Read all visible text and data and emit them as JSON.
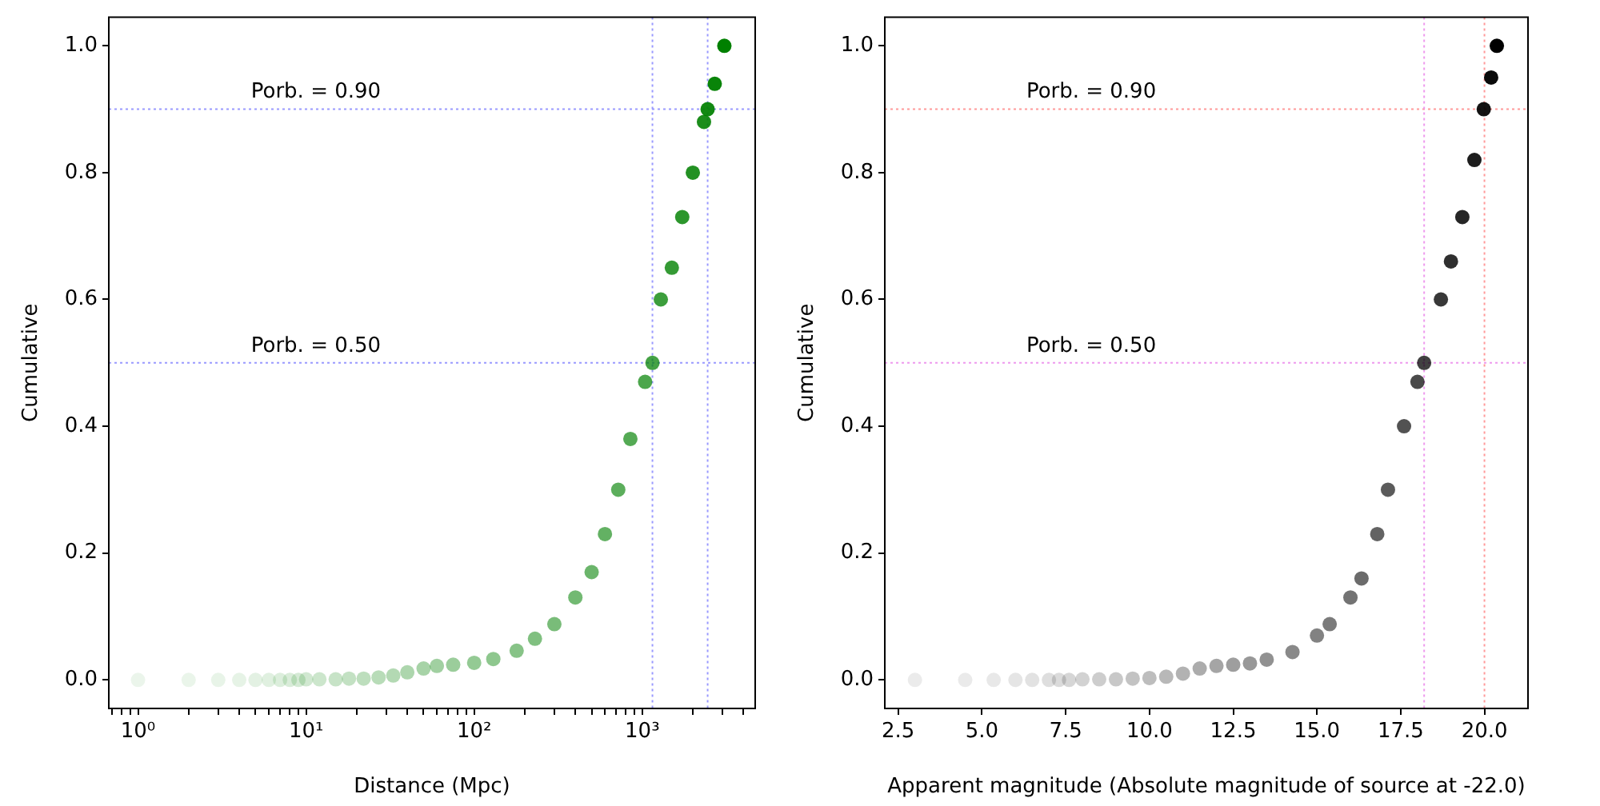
{
  "chart_data": [
    {
      "type": "scatter",
      "xlabel": "Distance (Mpc)",
      "ylabel": "Cumulative",
      "log": "x",
      "marker": "circle",
      "x": [
        1,
        2,
        3,
        4,
        5,
        6,
        7,
        8,
        9,
        10,
        12,
        15,
        18,
        22,
        27,
        33,
        40,
        50,
        60,
        75,
        100,
        130,
        179,
        230,
        300,
        400,
        500,
        600,
        720,
        850,
        1040,
        1150,
        1290,
        1500,
        1730,
        2000,
        2330,
        2450,
        2700,
        3080
      ],
      "series": [
        {
          "color": "#008000",
          "values": [
            0,
            0,
            0,
            0,
            0,
            0,
            0,
            0,
            0,
            0.001,
            0.001,
            0.001,
            0.002,
            0.002,
            0.004,
            0.007,
            0.012,
            0.018,
            0.022,
            0.024,
            0.027,
            0.033,
            0.046,
            0.065,
            0.088,
            0.13,
            0.17,
            0.23,
            0.3,
            0.38,
            0.47,
            0.5,
            0.6,
            0.65,
            0.73,
            0.8,
            0.88,
            0.9,
            0.94,
            1.0
          ]
        }
      ],
      "xlim": [
        0.67,
        4700
      ],
      "xticks": [
        {
          "value": 1,
          "label": "10⁰"
        },
        {
          "value": 10,
          "label": "10¹"
        },
        {
          "value": 100,
          "label": "10²"
        },
        {
          "value": 1000,
          "label": "10³"
        },
        {
          "value": 0.7,
          "label": null
        },
        {
          "value": 0.8,
          "label": null
        },
        {
          "value": 0.9,
          "label": null
        },
        {
          "value": 2,
          "label": null
        },
        {
          "value": 3,
          "label": null
        },
        {
          "value": 4,
          "label": null
        },
        {
          "value": 5,
          "label": null
        },
        {
          "value": 6,
          "label": null
        },
        {
          "value": 7,
          "label": null
        },
        {
          "value": 8,
          "label": null
        },
        {
          "value": 9,
          "label": null
        },
        {
          "value": 20,
          "label": null
        },
        {
          "value": 30,
          "label": null
        },
        {
          "value": 40,
          "label": null
        },
        {
          "value": 50,
          "label": null
        },
        {
          "value": 60,
          "label": null
        },
        {
          "value": 70,
          "label": null
        },
        {
          "value": 80,
          "label": null
        },
        {
          "value": 90,
          "label": null
        },
        {
          "value": 200,
          "label": null
        },
        {
          "value": 300,
          "label": null
        },
        {
          "value": 400,
          "label": null
        },
        {
          "value": 500,
          "label": null
        },
        {
          "value": 600,
          "label": null
        },
        {
          "value": 700,
          "label": null
        },
        {
          "value": 800,
          "label": null
        },
        {
          "value": 900,
          "label": null
        },
        {
          "value": 2000,
          "label": null
        },
        {
          "value": 3000,
          "label": null
        },
        {
          "value": 4000,
          "label": null
        }
      ],
      "ylim": [
        -0.045,
        1.045
      ],
      "yticks": [
        {
          "value": 0,
          "label": "0.0"
        },
        {
          "value": 0.2,
          "label": "0.2"
        },
        {
          "value": 0.4,
          "label": "0.4"
        },
        {
          "value": 0.6,
          "label": "0.6"
        },
        {
          "value": 0.8,
          "label": "0.8"
        },
        {
          "value": 1,
          "label": "1.0"
        }
      ],
      "ref_lines": [
        {
          "axis": "y",
          "value": 0.9,
          "label": "Porb. = 0.90",
          "color": "#9999ff",
          "line_style": "dotted"
        },
        {
          "axis": "y",
          "value": 0.5,
          "label": "Porb. = 0.50",
          "color": "#9999ff",
          "line_style": "dotted"
        },
        {
          "axis": "x",
          "value": 1150,
          "color": "#9999ff",
          "line_style": "dotted"
        },
        {
          "axis": "x",
          "value": 2450,
          "color": "#9999ff",
          "line_style": "dotted"
        }
      ]
    },
    {
      "type": "scatter",
      "xlabel": "Apparent magnitude (Absolute magnitude of source at -22.0)",
      "ylabel": "Cumulative",
      "marker": "circle",
      "x": [
        3.0,
        4.5,
        5.35,
        6.0,
        6.5,
        7.0,
        7.3,
        7.6,
        8,
        8.5,
        9,
        9.5,
        10,
        10.5,
        11,
        11.5,
        12,
        12.5,
        13,
        13.5,
        14.27,
        15,
        15.38,
        16,
        16.33,
        16.8,
        17.12,
        17.6,
        18.0,
        18.2,
        18.7,
        19.0,
        19.34,
        19.7,
        19.98,
        20.2,
        20.37
      ],
      "series": [
        {
          "color": "#000000",
          "values": [
            0,
            0,
            0,
            0,
            0,
            0,
            0,
            0,
            0.001,
            0.001,
            0.001,
            0.002,
            0.003,
            0.005,
            0.01,
            0.018,
            0.022,
            0.024,
            0.026,
            0.032,
            0.044,
            0.07,
            0.088,
            0.13,
            0.16,
            0.23,
            0.3,
            0.4,
            0.47,
            0.5,
            0.6,
            0.66,
            0.73,
            0.82,
            0.9,
            0.95,
            1.0
          ]
        }
      ],
      "xlim": [
        2.1,
        21.3
      ],
      "xticks": [
        {
          "value": 2.5,
          "label": "2.5"
        },
        {
          "value": 5,
          "label": "5.0"
        },
        {
          "value": 7.5,
          "label": "7.5"
        },
        {
          "value": 10,
          "label": "10.0"
        },
        {
          "value": 12.5,
          "label": "12.5"
        },
        {
          "value": 15,
          "label": "15.0"
        },
        {
          "value": 17.5,
          "label": "17.5"
        },
        {
          "value": 20,
          "label": "20.0"
        }
      ],
      "ylim": [
        -0.045,
        1.045
      ],
      "yticks": [
        {
          "value": 0,
          "label": "0.0"
        },
        {
          "value": 0.2,
          "label": "0.2"
        },
        {
          "value": 0.4,
          "label": "0.4"
        },
        {
          "value": 0.6,
          "label": "0.6"
        },
        {
          "value": 0.8,
          "label": "0.8"
        },
        {
          "value": 1,
          "label": "1.0"
        }
      ],
      "ref_lines": [
        {
          "axis": "y",
          "value": 0.9,
          "label": "Porb. = 0.90",
          "color": "#ff9999",
          "line_style": "dotted"
        },
        {
          "axis": "y",
          "value": 0.5,
          "label": "Porb. = 0.50",
          "color": "#ee99ee",
          "line_style": "dotted"
        },
        {
          "axis": "x",
          "value": 18.2,
          "color": "#ee99ee",
          "line_style": "dotted"
        },
        {
          "axis": "x",
          "value": 20.0,
          "color": "#ff9999",
          "line_style": "dotted"
        }
      ]
    }
  ]
}
